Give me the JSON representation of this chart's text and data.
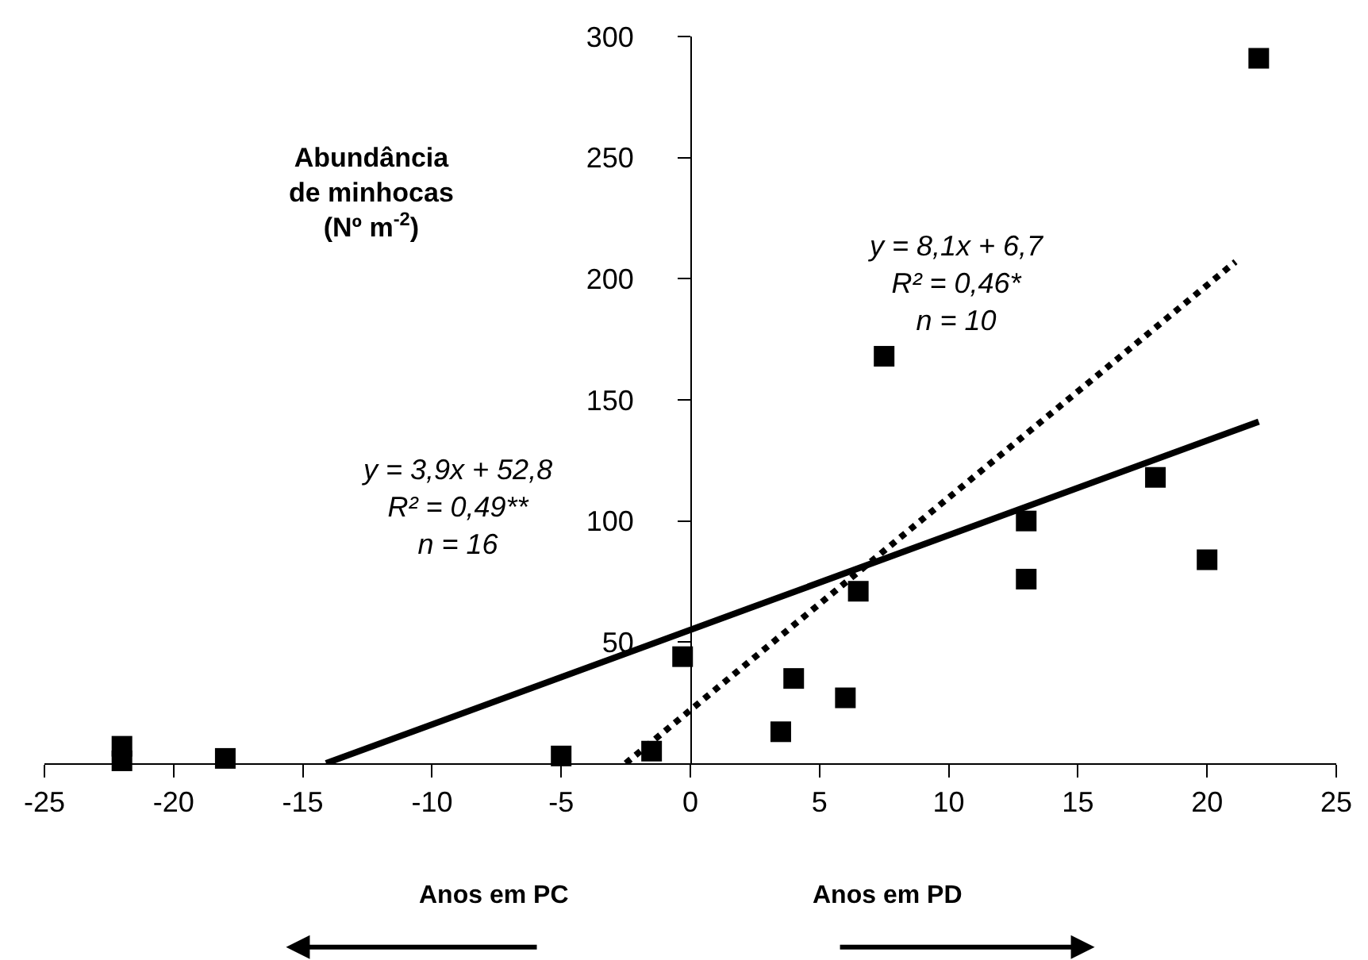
{
  "chart_data": {
    "type": "scatter",
    "ylabel": "Abundância\nde minhocas\n(Nº m$^{-2}$)",
    "xlim": [
      -25,
      25
    ],
    "xticks": [
      -25,
      -20,
      -15,
      -10,
      -5,
      0,
      5,
      10,
      15,
      20,
      25
    ],
    "ylim": [
      0,
      300
    ],
    "yticks": [
      50,
      100,
      150,
      200,
      250,
      300
    ],
    "grid": false,
    "series": [
      {
        "type": "scatter",
        "marker": "square",
        "color": "#000000",
        "x": [
          -22,
          -22,
          -18,
          -5,
          -1.5,
          -0.3,
          3.5,
          4,
          6,
          6.5,
          7.5,
          13,
          13,
          18,
          20,
          22
        ],
        "values": [
          7,
          1,
          2,
          3,
          5,
          44,
          13,
          35,
          27,
          71,
          168,
          100,
          76,
          118,
          84,
          291
        ]
      },
      {
        "type": "line",
        "color": "#000000",
        "line_style": "solid",
        "marker": "none",
        "x": [
          -14.1,
          22
        ],
        "values": [
          0,
          141
        ]
      },
      {
        "type": "line",
        "color": "#000000",
        "line_style": "dotted",
        "marker": "none",
        "x": [
          -2.5,
          21.1
        ],
        "values": [
          0,
          207
        ]
      }
    ],
    "annotations": [
      "y = 3,9x + 52,8\nR² = 0,49**\nn = 16",
      "y = 8,1x + 6,7\nR² = 0,46*\nn = 10",
      "Anos em PC",
      "Anos em PD"
    ]
  }
}
